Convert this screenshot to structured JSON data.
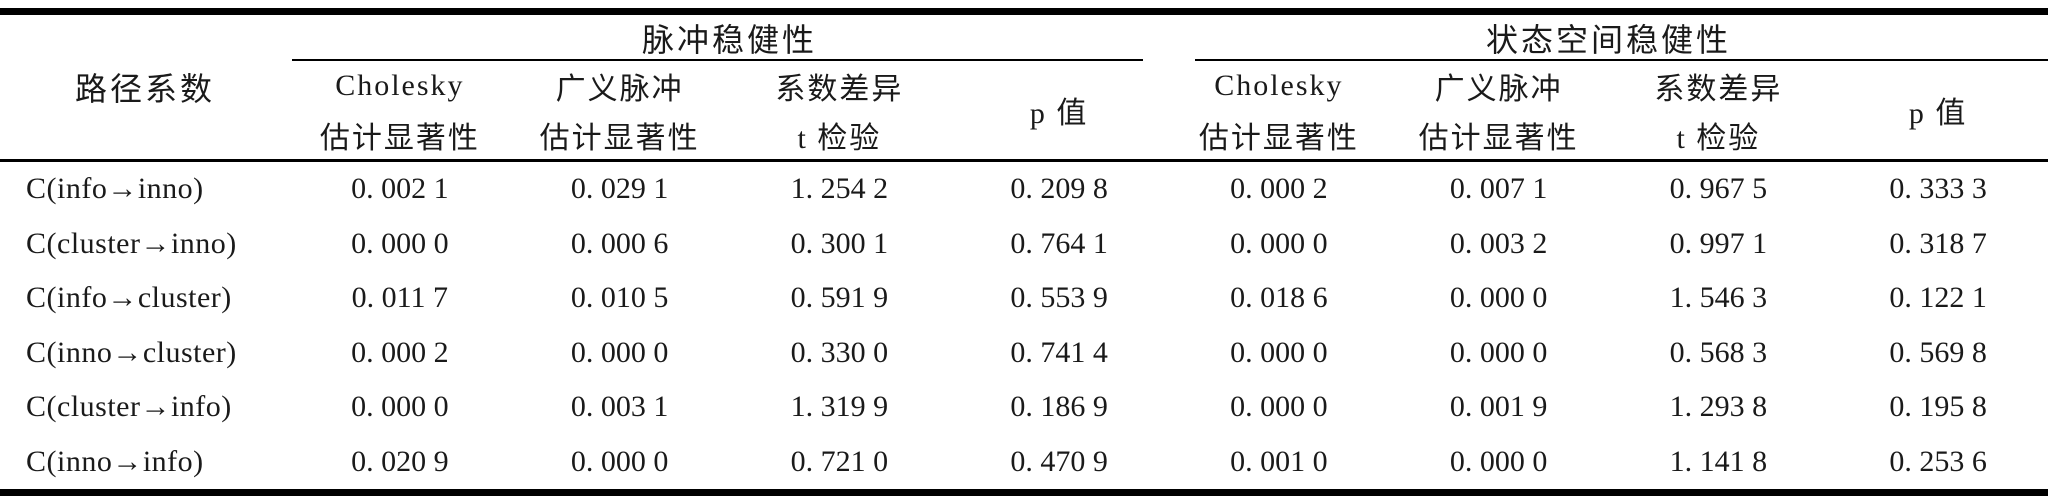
{
  "colors": {
    "background": "#ffffff",
    "text": "#1a1a1a",
    "rule": "#000000"
  },
  "table": {
    "row_header": "路径系数",
    "groups": [
      {
        "title": "脉冲稳健性",
        "columns": [
          {
            "line1": "Cholesky",
            "line2": "估计显著性"
          },
          {
            "line1": "广义脉冲",
            "line2": "估计显著性"
          },
          {
            "line1": "系数差异",
            "line2": "t 检验"
          },
          {
            "line1": "p 值",
            "line2": ""
          }
        ]
      },
      {
        "title": "状态空间稳健性",
        "columns": [
          {
            "line1": "Cholesky",
            "line2": "估计显著性"
          },
          {
            "line1": "广义脉冲",
            "line2": "估计显著性"
          },
          {
            "line1": "系数差异",
            "line2": "t 检验"
          },
          {
            "line1": "p 值",
            "line2": ""
          }
        ]
      }
    ],
    "rows": [
      {
        "label": "C(info→inno)",
        "values": [
          "0. 002 1",
          "0. 029 1",
          "1. 254 2",
          "0. 209 8",
          "0. 000 2",
          "0. 007 1",
          "0. 967 5",
          "0. 333 3"
        ]
      },
      {
        "label": "C(cluster→inno)",
        "values": [
          "0. 000 0",
          "0. 000 6",
          "0. 300 1",
          "0. 764 1",
          "0. 000 0",
          "0. 003 2",
          "0. 997 1",
          "0. 318 7"
        ]
      },
      {
        "label": "C(info→cluster)",
        "values": [
          "0. 011 7",
          "0. 010 5",
          "0. 591 9",
          "0. 553 9",
          "0. 018 6",
          "0. 000 0",
          "1. 546 3",
          "0. 122 1"
        ]
      },
      {
        "label": "C(inno→cluster)",
        "values": [
          "0. 000 2",
          "0. 000 0",
          "0. 330 0",
          "0. 741 4",
          "0. 000 0",
          "0. 000 0",
          "0. 568 3",
          "0. 569 8"
        ]
      },
      {
        "label": "C(cluster→info)",
        "values": [
          "0. 000 0",
          "0. 003 1",
          "1. 319 9",
          "0. 186 9",
          "0. 000 0",
          "0. 001 9",
          "1. 293 8",
          "0. 195 8"
        ]
      },
      {
        "label": "C(inno→info)",
        "values": [
          "0. 020 9",
          "0. 000 0",
          "0. 721 0",
          "0. 470 9",
          "0. 001 0",
          "0. 000 0",
          "1. 141 8",
          "0. 253 6"
        ]
      }
    ]
  }
}
